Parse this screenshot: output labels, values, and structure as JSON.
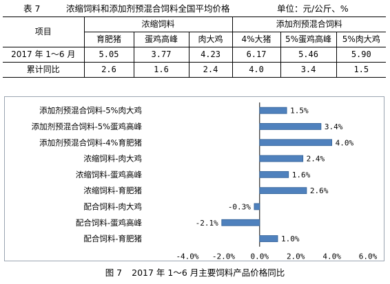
{
  "table": {
    "number": "表 7",
    "title": "浓缩饲料和添加剂预混合饲料全国平均价格",
    "unit": "单位：元/公斤、%",
    "header_item": "项目",
    "group1": "浓缩饲料",
    "group2": "添加剂预混合饲料",
    "columns": [
      "育肥猪",
      "蛋鸡高峰",
      "肉大鸡",
      "4%大猪",
      "5%蛋鸡高峰",
      "5%肉大鸡"
    ],
    "rows": [
      {
        "label": "2017 年 1～6 月",
        "values": [
          "5.05",
          "3.77",
          "4.23",
          "6.17",
          "5.46",
          "5.90"
        ]
      },
      {
        "label": "累计同比",
        "values": [
          "2.6",
          "1.6",
          "2.4",
          "4.0",
          "3.4",
          "1.5"
        ]
      }
    ]
  },
  "chart_data": {
    "type": "bar",
    "orientation": "horizontal",
    "categories": [
      "添加剂预混合饲料-5%肉大鸡",
      "添加剂预混合饲料-5%蛋鸡高峰",
      "添加剂预混合饲料-4%育肥猪",
      "浓缩饲料-肉大鸡",
      "浓缩饲料-蛋鸡高峰",
      "浓缩饲料-育肥猪",
      "配合饲料-肉大鸡",
      "配合饲料-蛋鸡高峰",
      "配合饲料-育肥猪"
    ],
    "values": [
      1.5,
      3.4,
      4.0,
      2.4,
      1.6,
      2.6,
      -0.3,
      -2.1,
      1.0
    ],
    "value_labels": [
      "1.5%",
      "3.4%",
      "4.0%",
      "2.4%",
      "1.6%",
      "2.6%",
      "-0.3%",
      "-2.1%",
      "1.0%"
    ],
    "xlim": [
      -4.0,
      6.0
    ],
    "x_ticks": [
      -4.0,
      -2.0,
      0.0,
      2.0,
      4.0,
      6.0
    ],
    "x_tick_labels": [
      "-4.0%",
      "-2.0%",
      "0.0%",
      "2.0%",
      "4.0%",
      "6.0%"
    ],
    "grid": false,
    "bar_color": "#4f81bd",
    "bar_edge_color": "#2f5f95"
  },
  "caption": {
    "number": "图 7",
    "text": "2017 年 1～6 月主要饲料产品价格同比"
  }
}
